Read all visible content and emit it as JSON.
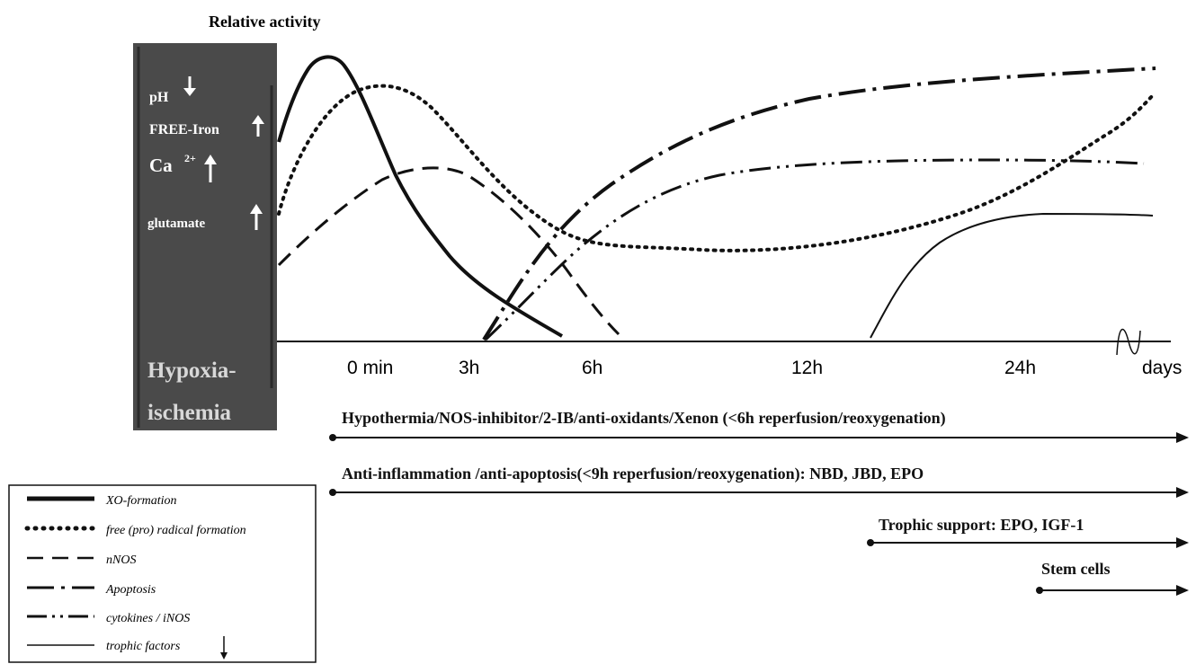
{
  "y_axis_label": "Relative activity",
  "phase_box": {
    "label_line1": "Hypoxia-",
    "label_line2": "ischemia",
    "fill_color": "#4a4a4a",
    "markers": [
      {
        "label": "pH",
        "superscript": "",
        "direction": "down"
      },
      {
        "label": "FREE-Iron",
        "superscript": "",
        "direction": "up"
      },
      {
        "label": "Ca",
        "superscript": "2+",
        "direction": "up"
      },
      {
        "label": "glutamate",
        "superscript": "",
        "direction": "up"
      }
    ]
  },
  "time_axis": {
    "ticks": [
      "0 min",
      "3h",
      "6h",
      "12h",
      "24h",
      "days"
    ]
  },
  "curves": [
    {
      "name": "XO-formation",
      "style": "thick-solid"
    },
    {
      "name": "free (pro) radical formation",
      "style": "dotted"
    },
    {
      "name": "nNOS",
      "style": "dashed"
    },
    {
      "name": "Apoptosis",
      "style": "dash-dot"
    },
    {
      "name": "cytokines / iNOS",
      "style": "dash-dot-dot"
    },
    {
      "name": "trophic factors",
      "style": "thin-solid"
    }
  ],
  "legend": {
    "trophic_arrow_direction": "down"
  },
  "therapy_windows": [
    {
      "label": "Hypothermia/NOS-inhibitor/2-IB/anti-oxidants/Xenon (<6h reperfusion/reoxygenation)"
    },
    {
      "label": "Anti-inflammation /anti-apoptosis(<9h reperfusion/reoxygenation): NBD, JBD, EPO"
    },
    {
      "label": "Trophic support: EPO, IGF-1"
    },
    {
      "label": "Stem cells"
    }
  ],
  "colors": {
    "line": "#111111",
    "box_text": "#ffffff",
    "box_label": "#d8d8d8"
  }
}
